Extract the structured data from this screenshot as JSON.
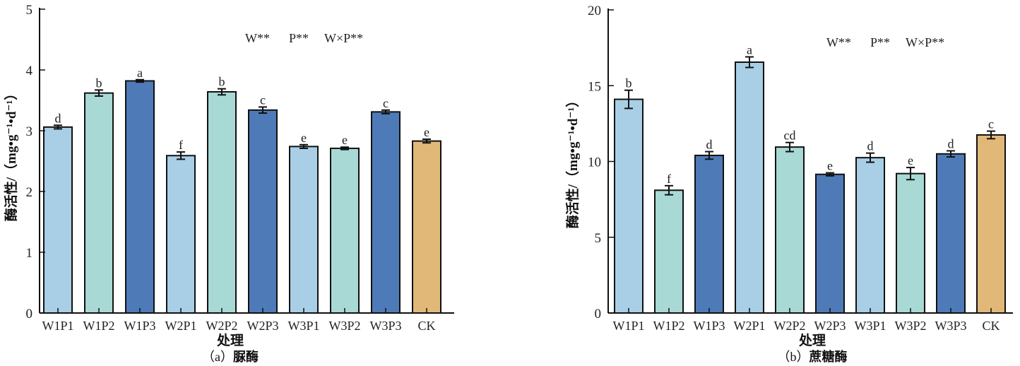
{
  "chart_data": [
    {
      "type": "bar",
      "panel": "a",
      "caption_prefix": "（a）",
      "caption_name": "脲酶",
      "xlabel": "处理",
      "ylabel": "酶活性/（mg•g⁻¹•d⁻¹）",
      "ylim": [
        0,
        5
      ],
      "yticks": [
        0,
        1,
        2,
        3,
        4,
        5
      ],
      "annotation": [
        "W**",
        "P**",
        "W×P**"
      ],
      "categories": [
        "W1P1",
        "W1P2",
        "W1P3",
        "W2P1",
        "W2P2",
        "W2P3",
        "W3P1",
        "W3P2",
        "W3P3",
        "CK"
      ],
      "values": [
        3.06,
        3.62,
        3.82,
        2.59,
        3.64,
        3.34,
        2.74,
        2.71,
        3.31,
        2.83
      ],
      "errors": [
        0.03,
        0.05,
        0.02,
        0.06,
        0.05,
        0.05,
        0.03,
        0.02,
        0.03,
        0.03
      ],
      "significance": [
        "d",
        "b",
        "a",
        "f",
        "b",
        "c",
        "e",
        "e",
        "c",
        "e"
      ],
      "colors": [
        "#a8cfe6",
        "#a9d9d4",
        "#4f7ab8",
        "#a8cfe6",
        "#a9d9d4",
        "#4f7ab8",
        "#a8cfe6",
        "#a9d9d4",
        "#4f7ab8",
        "#e2b878"
      ],
      "grid": false
    },
    {
      "type": "bar",
      "panel": "b",
      "caption_prefix": "（b）",
      "caption_name": "蔗糖酶",
      "xlabel": "处理",
      "ylabel": "酶活性/（mg•g⁻¹•d⁻¹）",
      "ylim": [
        0,
        20
      ],
      "yticks": [
        0,
        5,
        10,
        15,
        20
      ],
      "annotation": [
        "W**",
        "P**",
        "W×P**"
      ],
      "categories": [
        "W1P1",
        "W1P2",
        "W1P3",
        "W2P1",
        "W2P2",
        "W2P3",
        "W3P1",
        "W3P2",
        "W3P3",
        "CK"
      ],
      "values": [
        14.1,
        8.1,
        10.4,
        16.55,
        10.95,
        9.15,
        10.25,
        9.2,
        10.5,
        11.75
      ],
      "errors": [
        0.6,
        0.3,
        0.25,
        0.35,
        0.3,
        0.1,
        0.3,
        0.4,
        0.2,
        0.25
      ],
      "significance": [
        "b",
        "f",
        "d",
        "a",
        "cd",
        "e",
        "d",
        "e",
        "d",
        "c"
      ],
      "colors": [
        "#a8cfe6",
        "#a9d9d4",
        "#4f7ab8",
        "#a8cfe6",
        "#a9d9d4",
        "#4f7ab8",
        "#a8cfe6",
        "#a9d9d4",
        "#4f7ab8",
        "#e2b878"
      ],
      "grid": false
    }
  ]
}
